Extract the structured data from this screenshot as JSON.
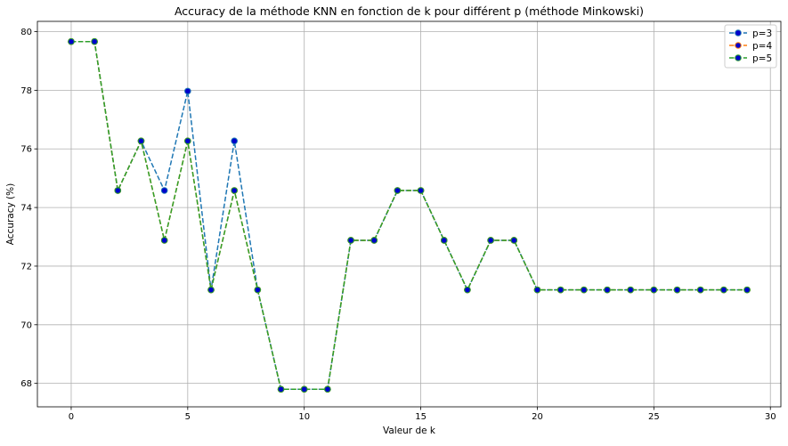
{
  "chart_data": {
    "type": "line",
    "title": "Accuracy de la méthode KNN en fonction de k pour différent p (méthode Minkowski)",
    "xlabel": "Valeur de k",
    "ylabel": "Accuracy (%)",
    "xlim": [
      -1.45,
      30.45
    ],
    "ylim": [
      67.2,
      80.35
    ],
    "xticks": [
      0,
      5,
      10,
      15,
      20,
      25,
      30
    ],
    "yticks": [
      68,
      70,
      72,
      74,
      76,
      78,
      80
    ],
    "grid": true,
    "legend_position": "top-right",
    "marker_face_color": "#0000cc",
    "x": [
      0,
      1,
      2,
      3,
      4,
      5,
      6,
      7,
      8,
      9,
      10,
      11,
      12,
      13,
      14,
      15,
      16,
      17,
      18,
      19,
      20,
      21,
      22,
      23,
      24,
      25,
      26,
      27,
      28,
      29
    ],
    "series": [
      {
        "name": "p=3",
        "color": "#1f77b4",
        "values": [
          79.66,
          79.66,
          74.58,
          76.27,
          74.58,
          77.97,
          71.19,
          76.27,
          71.19,
          67.8,
          67.8,
          67.8,
          72.88,
          72.88,
          74.58,
          74.58,
          72.88,
          71.19,
          72.88,
          72.88,
          71.19,
          71.19,
          71.19,
          71.19,
          71.19,
          71.19,
          71.19,
          71.19,
          71.19,
          71.19
        ]
      },
      {
        "name": "p=4",
        "color": "#ff7f0e",
        "values": [
          79.66,
          79.66,
          74.58,
          76.27,
          72.88,
          76.27,
          71.19,
          74.58,
          71.19,
          67.8,
          67.8,
          67.8,
          72.88,
          72.88,
          74.58,
          74.58,
          72.88,
          71.19,
          72.88,
          72.88,
          71.19,
          71.19,
          71.19,
          71.19,
          71.19,
          71.19,
          71.19,
          71.19,
          71.19,
          71.19
        ]
      },
      {
        "name": "p=5",
        "color": "#2ca02c",
        "values": [
          79.66,
          79.66,
          74.58,
          76.27,
          72.88,
          76.27,
          71.19,
          74.58,
          71.19,
          67.8,
          67.8,
          67.8,
          72.88,
          72.88,
          74.58,
          74.58,
          72.88,
          71.19,
          72.88,
          72.88,
          71.19,
          71.19,
          71.19,
          71.19,
          71.19,
          71.19,
          71.19,
          71.19,
          71.19,
          71.19
        ]
      }
    ]
  }
}
